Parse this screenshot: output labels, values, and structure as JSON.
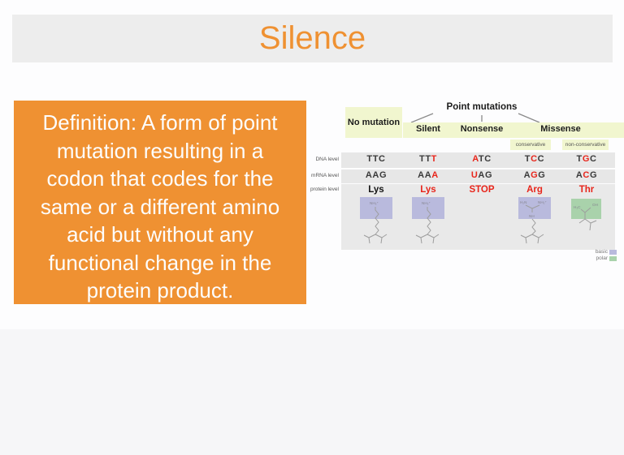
{
  "title": "Silence",
  "definition": {
    "lines": [
      "Definition: A form of point",
      "mutation resulting in a",
      "codon that codes for the",
      "same or a different amino",
      "acid but without any",
      "functional change in the",
      "protein product."
    ]
  },
  "diagram": {
    "no_mutation_label": "No mutation",
    "point_mutations_label": "Point mutations",
    "branch_labels": [
      "Silent",
      "Nonsense",
      "Missense"
    ],
    "missense_sub_labels": [
      "conservative",
      "non-conservative"
    ],
    "row_labels": [
      "DNA level",
      "mRNA level",
      "protein level"
    ],
    "columns": [
      {
        "dna": "TTC",
        "dna_red": -1,
        "mrna": "AAG",
        "mrna_red": -1,
        "protein": "Lys",
        "protein_red": false,
        "structure": "lysine",
        "structure_class": "basic"
      },
      {
        "dna": "TTT",
        "dna_red": 2,
        "mrna": "AAA",
        "mrna_red": 2,
        "protein": "Lys",
        "protein_red": true,
        "structure": "lysine",
        "structure_class": "basic"
      },
      {
        "dna": "ATC",
        "dna_red": 0,
        "mrna": "UAG",
        "mrna_red": 0,
        "protein": "STOP",
        "protein_red": true,
        "structure": null,
        "structure_class": null
      },
      {
        "dna": "TCC",
        "dna_red": 1,
        "mrna": "AGG",
        "mrna_red": 1,
        "protein": "Arg",
        "protein_red": true,
        "structure": "arginine",
        "structure_class": "basic"
      },
      {
        "dna": "TGC",
        "dna_red": 1,
        "mrna": "ACG",
        "mrna_red": 1,
        "protein": "Thr",
        "protein_red": true,
        "structure": "threonine",
        "structure_class": "polar"
      }
    ],
    "structure_labels": {
      "lysine_amine": "NH₃⁺",
      "arginine_left": "H₂N",
      "arginine_right": "NH₂⁺",
      "arginine_mid": "NH",
      "threonine_methyl": "H₃C",
      "threonine_hydroxyl": "OH"
    },
    "legend": [
      {
        "label": "basic",
        "color": "#b9badd"
      },
      {
        "label": "polar",
        "color": "#a9d2ab"
      }
    ]
  },
  "colors": {
    "orange": "#ef9132",
    "white_text": "#fdfdfd",
    "header_gray": "#ededed",
    "lower_bg": "#f6f6f8",
    "yellow": "#f1f6cf",
    "band_gray": "#e7e7e7",
    "band_gray_big": "#e9e9e9",
    "red": "#e8251b",
    "codon_dark": "#3a3a3a",
    "lavender": "#b9badd",
    "green": "#a9d2ab",
    "structure_stroke": "#9d9d9d",
    "label_gray": "#555555",
    "legend_text": "#777777",
    "line_gray": "#8a8a8a"
  }
}
